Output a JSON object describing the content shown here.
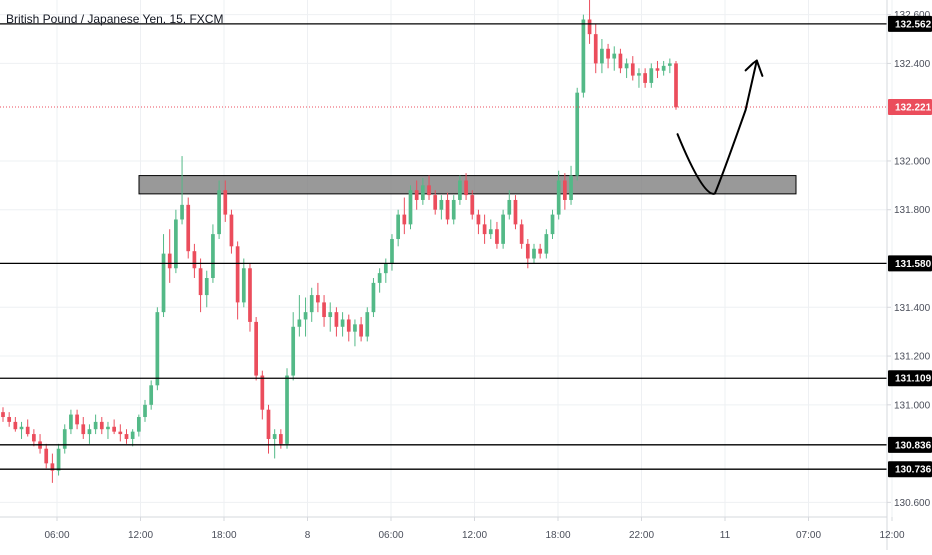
{
  "title": "British Pound / Japanese Yen, 15, FXCM",
  "colors": {
    "up": "#53b987",
    "down": "#eb4d5c",
    "grid": "#eef0f3",
    "axis_border": "#d6d8dd",
    "level_line": "#000000",
    "current_line": "#eb4d5c",
    "zone_fill": "#7f7f7f"
  },
  "chart_data": {
    "type": "candlestick",
    "title": "British Pound / Japanese Yen, 15, FXCM",
    "ylim": [
      130.54,
      132.66
    ],
    "y_ticks": [
      "130.600",
      "131.000",
      "131.200",
      "131.400",
      "131.800",
      "132.000",
      "132.400",
      "132.600"
    ],
    "x_ticks": [
      "06:00",
      "12:00",
      "18:00",
      "8",
      "06:00",
      "12:00",
      "18:00",
      "22:00",
      "11",
      "07:00",
      "12:00"
    ],
    "horizontal_levels": [
      {
        "label": "132.562",
        "value": 132.562
      },
      {
        "label": "131.580",
        "value": 131.58
      },
      {
        "label": "131.109",
        "value": 131.109
      },
      {
        "label": "130.836",
        "value": 130.836
      },
      {
        "label": "130.736",
        "value": 130.736
      }
    ],
    "current_price": {
      "label": "132.221",
      "value": 132.221
    },
    "zone": {
      "y_low": 131.865,
      "y_high": 131.94
    },
    "ohlc": [
      [
        130.97,
        130.99,
        130.93,
        130.95
      ],
      [
        130.95,
        130.97,
        130.91,
        130.93
      ],
      [
        130.93,
        130.95,
        130.89,
        130.9
      ],
      [
        130.9,
        130.93,
        130.86,
        130.91
      ],
      [
        130.91,
        130.94,
        130.87,
        130.88
      ],
      [
        130.88,
        130.9,
        130.83,
        130.85
      ],
      [
        130.85,
        130.88,
        130.8,
        130.82
      ],
      [
        130.82,
        130.84,
        130.74,
        130.76
      ],
      [
        130.76,
        130.8,
        130.68,
        130.73
      ],
      [
        130.73,
        130.84,
        130.71,
        130.82
      ],
      [
        130.82,
        130.92,
        130.8,
        130.9
      ],
      [
        130.9,
        130.98,
        130.88,
        130.96
      ],
      [
        130.96,
        130.98,
        130.9,
        130.92
      ],
      [
        130.92,
        130.95,
        130.86,
        130.88
      ],
      [
        130.88,
        130.92,
        130.84,
        130.9
      ],
      [
        130.9,
        130.96,
        130.88,
        130.93
      ],
      [
        130.93,
        130.95,
        130.88,
        130.9
      ],
      [
        130.9,
        130.93,
        130.86,
        130.91
      ],
      [
        130.91,
        130.94,
        130.88,
        130.89
      ],
      [
        130.89,
        130.92,
        130.85,
        130.88
      ],
      [
        130.88,
        130.9,
        130.84,
        130.86
      ],
      [
        130.86,
        130.9,
        130.83,
        130.89
      ],
      [
        130.89,
        130.96,
        130.87,
        130.95
      ],
      [
        130.95,
        131.02,
        130.93,
        131.0
      ],
      [
        131.0,
        131.1,
        130.98,
        131.08
      ],
      [
        131.08,
        131.4,
        131.06,
        131.38
      ],
      [
        131.38,
        131.7,
        131.36,
        131.62
      ],
      [
        131.62,
        131.72,
        131.5,
        131.56
      ],
      [
        131.56,
        131.8,
        131.54,
        131.76
      ],
      [
        131.76,
        132.02,
        131.74,
        131.82
      ],
      [
        131.82,
        131.85,
        131.6,
        131.63
      ],
      [
        131.63,
        131.66,
        131.52,
        131.56
      ],
      [
        131.56,
        131.6,
        131.38,
        131.45
      ],
      [
        131.45,
        131.55,
        131.4,
        131.52
      ],
      [
        131.52,
        131.74,
        131.5,
        131.7
      ],
      [
        131.7,
        131.92,
        131.68,
        131.88
      ],
      [
        131.88,
        131.92,
        131.75,
        131.78
      ],
      [
        131.78,
        131.8,
        131.62,
        131.65
      ],
      [
        131.65,
        131.67,
        131.35,
        131.42
      ],
      [
        131.42,
        131.6,
        131.4,
        131.56
      ],
      [
        131.56,
        131.58,
        131.3,
        131.34
      ],
      [
        131.34,
        131.36,
        131.1,
        131.12
      ],
      [
        131.12,
        131.14,
        130.94,
        130.98
      ],
      [
        130.98,
        131.0,
        130.8,
        130.86
      ],
      [
        130.86,
        130.9,
        130.78,
        130.88
      ],
      [
        130.88,
        130.9,
        130.82,
        130.84
      ],
      [
        130.84,
        131.15,
        130.82,
        131.12
      ],
      [
        131.12,
        131.38,
        131.1,
        131.32
      ],
      [
        131.32,
        131.45,
        131.28,
        131.35
      ],
      [
        131.35,
        131.44,
        131.28,
        131.38
      ],
      [
        131.38,
        131.48,
        131.34,
        131.45
      ],
      [
        131.45,
        131.5,
        131.38,
        131.42
      ],
      [
        131.42,
        131.45,
        131.32,
        131.36
      ],
      [
        131.36,
        131.42,
        131.3,
        131.38
      ],
      [
        131.38,
        131.4,
        131.28,
        131.32
      ],
      [
        131.32,
        131.38,
        131.28,
        131.35
      ],
      [
        131.35,
        131.37,
        131.26,
        131.3
      ],
      [
        131.3,
        131.35,
        131.24,
        131.33
      ],
      [
        131.33,
        131.36,
        131.26,
        131.28
      ],
      [
        131.28,
        131.4,
        131.26,
        131.38
      ],
      [
        131.38,
        131.52,
        131.36,
        131.5
      ],
      [
        131.5,
        131.56,
        131.46,
        131.54
      ],
      [
        131.54,
        131.6,
        131.5,
        131.58
      ],
      [
        131.58,
        131.7,
        131.55,
        131.68
      ],
      [
        131.68,
        131.8,
        131.65,
        131.78
      ],
      [
        131.78,
        131.85,
        131.7,
        131.74
      ],
      [
        131.74,
        131.9,
        131.72,
        131.88
      ],
      [
        131.88,
        131.92,
        131.8,
        131.84
      ],
      [
        131.84,
        131.93,
        131.82,
        131.9
      ],
      [
        131.9,
        131.94,
        131.84,
        131.86
      ],
      [
        131.86,
        131.88,
        131.78,
        131.8
      ],
      [
        131.8,
        131.86,
        131.76,
        131.84
      ],
      [
        131.84,
        131.87,
        131.74,
        131.76
      ],
      [
        131.76,
        131.86,
        131.74,
        131.84
      ],
      [
        131.84,
        131.94,
        131.82,
        131.92
      ],
      [
        131.92,
        131.95,
        131.84,
        131.86
      ],
      [
        131.86,
        131.88,
        131.76,
        131.78
      ],
      [
        131.78,
        131.8,
        131.7,
        131.74
      ],
      [
        131.74,
        131.78,
        131.66,
        131.7
      ],
      [
        131.7,
        131.76,
        131.68,
        131.72
      ],
      [
        131.72,
        131.75,
        131.64,
        131.66
      ],
      [
        131.66,
        131.8,
        131.64,
        131.78
      ],
      [
        131.78,
        131.88,
        131.76,
        131.84
      ],
      [
        131.84,
        131.86,
        131.72,
        131.74
      ],
      [
        131.74,
        131.76,
        131.64,
        131.66
      ],
      [
        131.66,
        131.68,
        131.56,
        131.6
      ],
      [
        131.6,
        131.66,
        131.58,
        131.64
      ],
      [
        131.64,
        131.66,
        131.6,
        131.62
      ],
      [
        131.62,
        131.72,
        131.6,
        131.7
      ],
      [
        131.7,
        131.8,
        131.68,
        131.78
      ],
      [
        131.78,
        131.96,
        131.76,
        131.92
      ],
      [
        131.92,
        131.95,
        131.8,
        131.84
      ],
      [
        131.84,
        131.98,
        131.82,
        131.94
      ],
      [
        131.94,
        132.3,
        131.92,
        132.28
      ],
      [
        132.28,
        132.6,
        132.26,
        132.58
      ],
      [
        132.58,
        132.68,
        132.48,
        132.52
      ],
      [
        132.52,
        132.56,
        132.36,
        132.4
      ],
      [
        132.4,
        132.5,
        132.36,
        132.46
      ],
      [
        132.46,
        132.48,
        132.38,
        132.42
      ],
      [
        132.42,
        132.47,
        132.37,
        132.44
      ],
      [
        132.44,
        132.46,
        132.36,
        132.38
      ],
      [
        132.38,
        132.42,
        132.34,
        132.4
      ],
      [
        132.4,
        132.43,
        132.33,
        132.35
      ],
      [
        132.35,
        132.38,
        132.3,
        132.36
      ],
      [
        132.36,
        132.38,
        132.3,
        132.32
      ],
      [
        132.32,
        132.4,
        132.3,
        132.38
      ],
      [
        132.38,
        132.41,
        132.34,
        132.37
      ],
      [
        132.37,
        132.41,
        132.35,
        132.39
      ],
      [
        132.39,
        132.42,
        132.36,
        132.4
      ],
      [
        132.4,
        132.41,
        132.21,
        132.22
      ]
    ],
    "drawing_path": [
      [
        0.727,
        0.244
      ],
      [
        0.757,
        0.35
      ],
      [
        0.767,
        0.352
      ],
      [
        0.775,
        0.32
      ],
      [
        0.8,
        0.2
      ],
      [
        0.812,
        0.11
      ],
      [
        0.818,
        0.138
      ],
      [
        0.808,
        0.115
      ],
      [
        0.8,
        0.128
      ]
    ]
  }
}
